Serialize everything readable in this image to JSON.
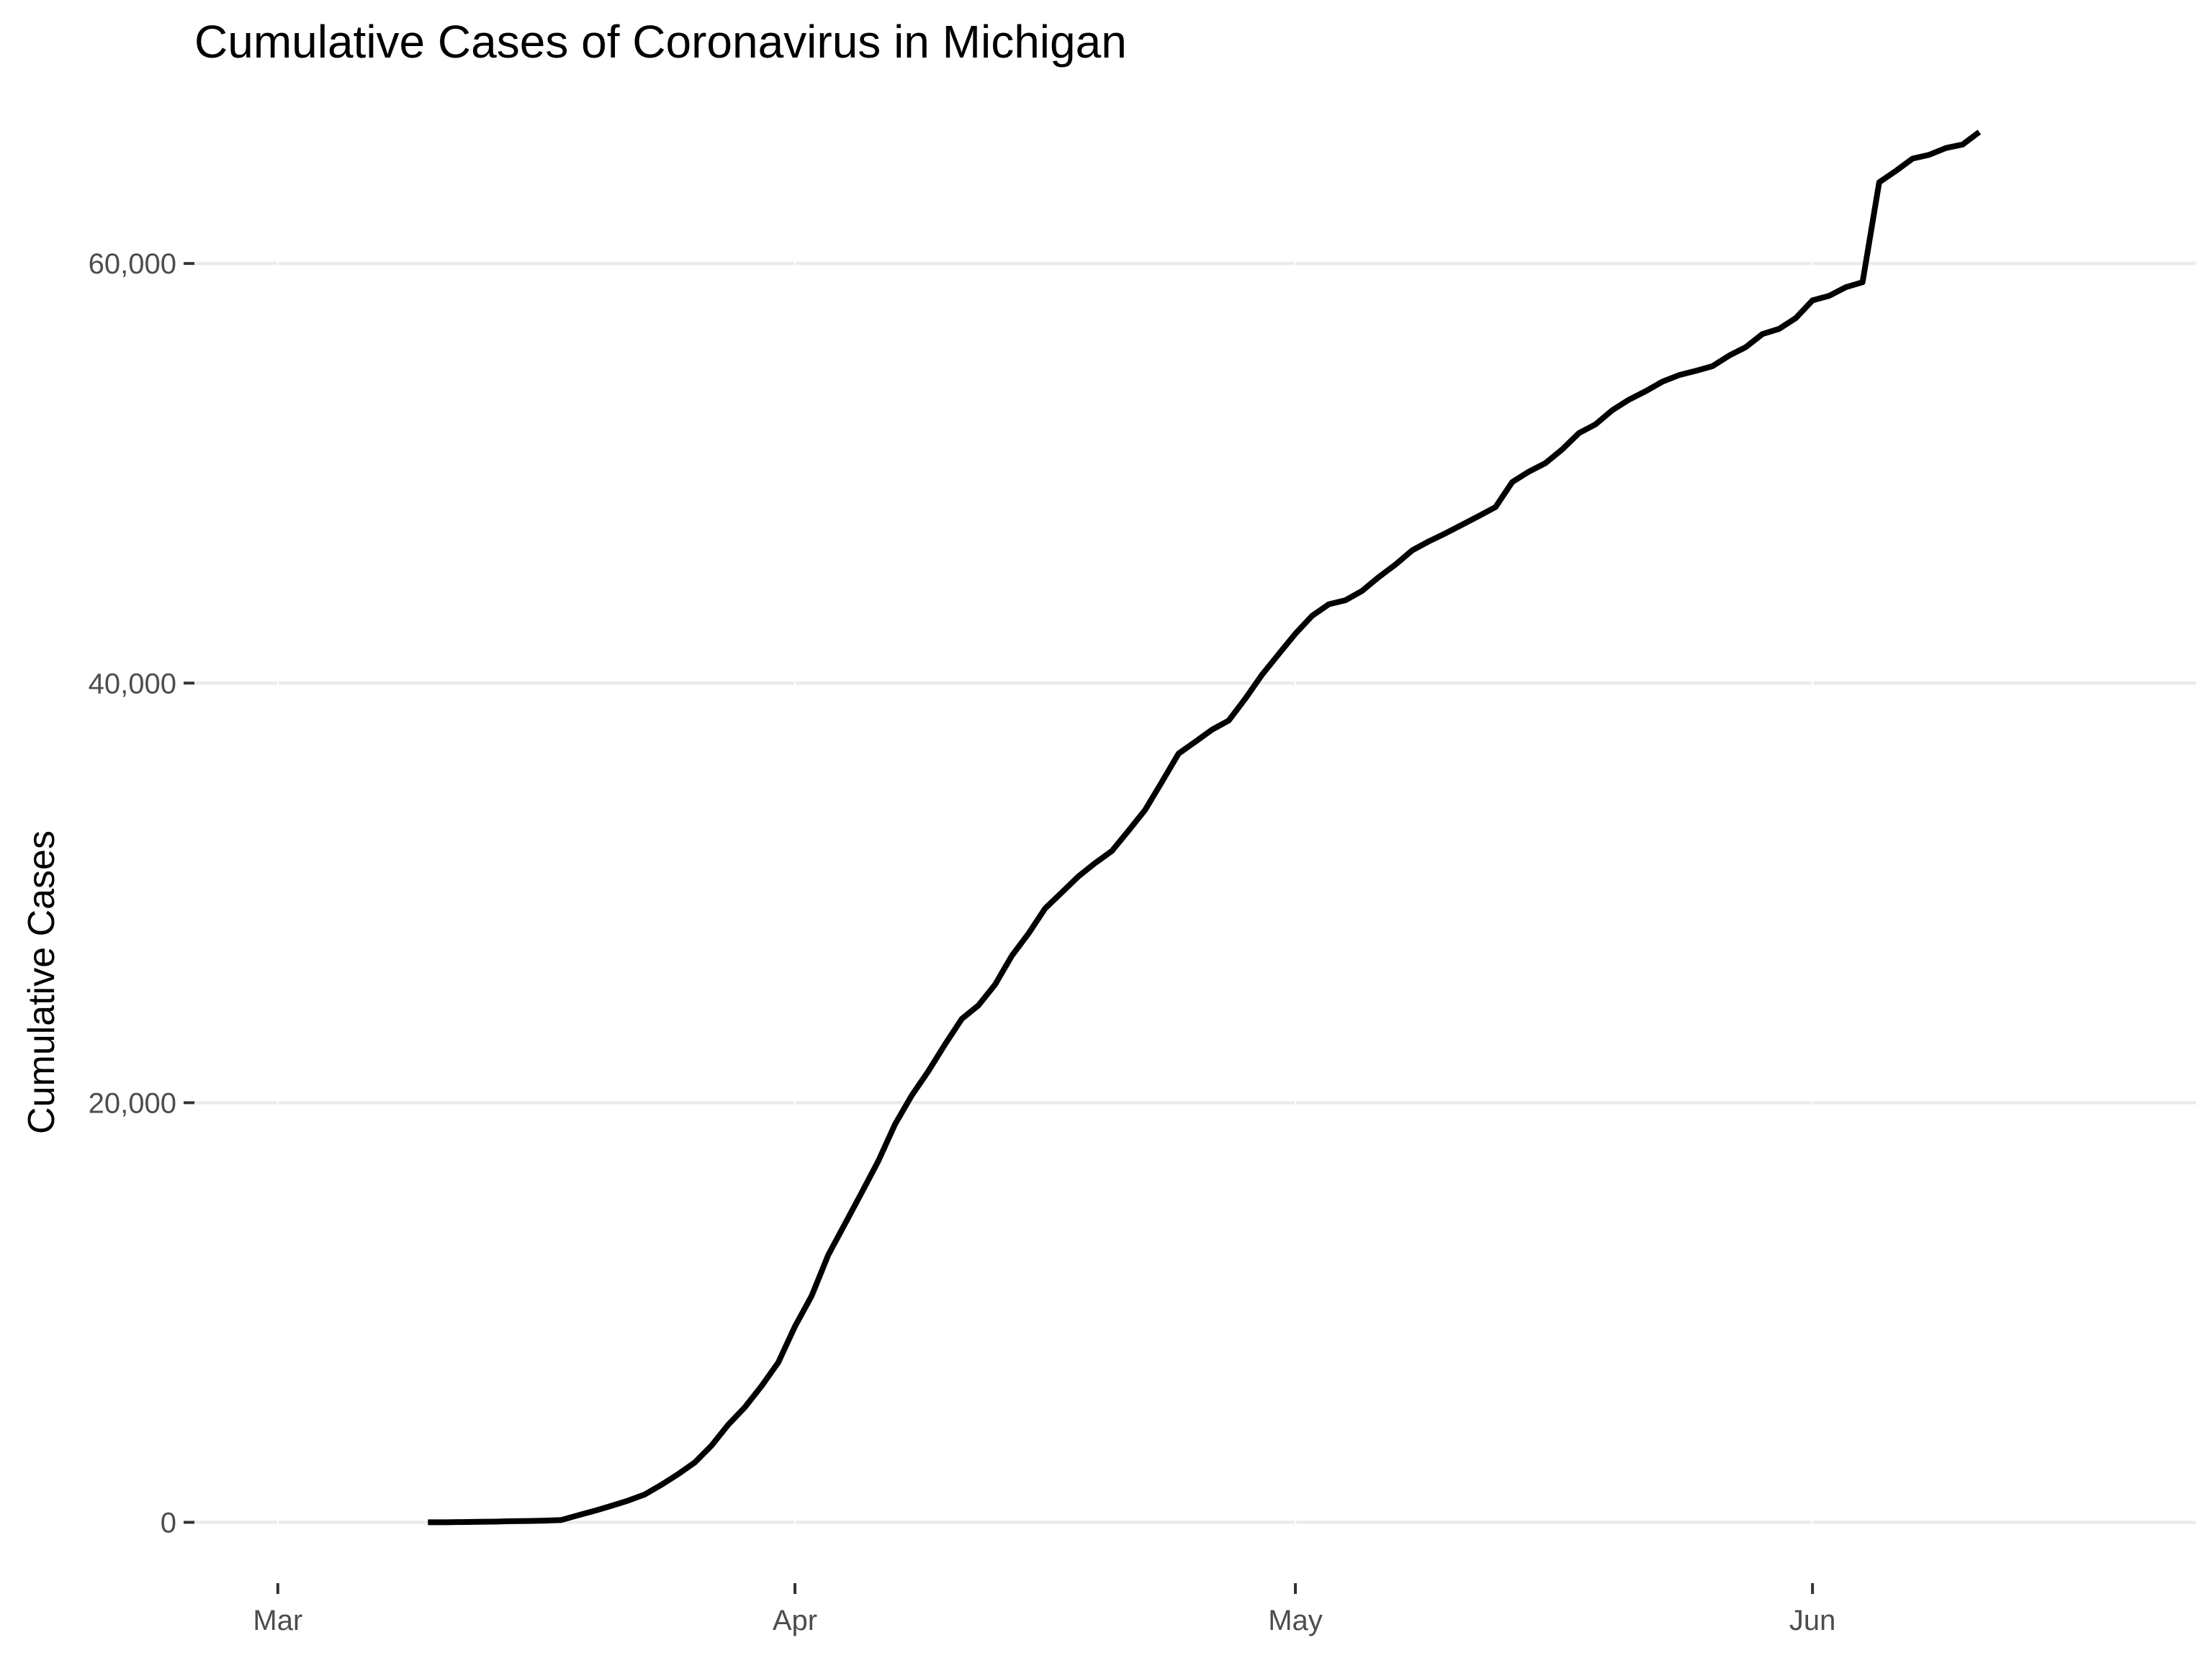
{
  "chart_data": {
    "type": "line",
    "title": "Cumulative Cases of Coronavirus in Michigan",
    "xlabel": "",
    "ylabel": "Cumulative Cases",
    "x_ticks": [
      "Mar",
      "Apr",
      "May",
      "Jun"
    ],
    "x_tick_dates": [
      "2020-03-01",
      "2020-04-01",
      "2020-05-01",
      "2020-06-01"
    ],
    "xlim": [
      "2020-02-25",
      "2020-06-24"
    ],
    "y_ticks": [
      0,
      20000,
      40000,
      60000
    ],
    "y_tick_labels": [
      "0",
      "20,000",
      "40,000",
      "60,000"
    ],
    "ylim": [
      -2900,
      68100
    ],
    "grid": true,
    "line_color": "#000000",
    "series": [
      {
        "x": [
          "2020-03-10",
          "2020-03-11",
          "2020-03-12",
          "2020-03-13",
          "2020-03-14",
          "2020-03-15",
          "2020-03-16",
          "2020-03-17",
          "2020-03-18",
          "2020-03-19",
          "2020-03-20",
          "2020-03-21",
          "2020-03-22",
          "2020-03-23",
          "2020-03-24",
          "2020-03-25",
          "2020-03-26",
          "2020-03-27",
          "2020-03-28",
          "2020-03-29",
          "2020-03-30",
          "2020-03-31",
          "2020-04-01",
          "2020-04-02",
          "2020-04-03",
          "2020-04-04",
          "2020-04-05",
          "2020-04-06",
          "2020-04-07",
          "2020-04-08",
          "2020-04-09",
          "2020-04-10",
          "2020-04-11",
          "2020-04-12",
          "2020-04-13",
          "2020-04-14",
          "2020-04-15",
          "2020-04-16",
          "2020-04-17",
          "2020-04-18",
          "2020-04-19",
          "2020-04-20",
          "2020-04-21",
          "2020-04-22",
          "2020-04-23",
          "2020-04-24",
          "2020-04-25",
          "2020-04-26",
          "2020-04-27",
          "2020-04-28",
          "2020-04-29",
          "2020-04-30",
          "2020-05-01",
          "2020-05-02",
          "2020-05-03",
          "2020-05-04",
          "2020-05-05",
          "2020-05-06",
          "2020-05-07",
          "2020-05-08",
          "2020-05-09",
          "2020-05-10",
          "2020-05-11",
          "2020-05-12",
          "2020-05-13",
          "2020-05-14",
          "2020-05-15",
          "2020-05-16",
          "2020-05-17",
          "2020-05-18",
          "2020-05-19",
          "2020-05-20",
          "2020-05-21",
          "2020-05-22",
          "2020-05-23",
          "2020-05-24",
          "2020-05-25",
          "2020-05-26",
          "2020-05-27",
          "2020-05-28",
          "2020-05-29",
          "2020-05-30",
          "2020-05-31",
          "2020-06-01",
          "2020-06-02",
          "2020-06-03",
          "2020-06-04",
          "2020-06-05",
          "2020-06-06",
          "2020-06-07",
          "2020-06-08",
          "2020-06-09",
          "2020-06-10",
          "2020-06-11"
        ],
        "values": [
          2,
          3,
          12,
          25,
          33,
          53,
          65,
          80,
          110,
          336,
          549,
          787,
          1035,
          1328,
          1791,
          2295,
          2856,
          3657,
          4650,
          5486,
          6498,
          7615,
          9334,
          10791,
          12744,
          14225,
          15718,
          17221,
          18970,
          20346,
          21504,
          22783,
          23993,
          24638,
          25635,
          27001,
          28059,
          29263,
          30023,
          30791,
          31424,
          32000,
          32967,
          33966,
          35291,
          36641,
          37203,
          37778,
          38210,
          39262,
          40399,
          41379,
          42356,
          43207,
          43754,
          43950,
          44397,
          45054,
          45646,
          46326,
          46756,
          47138,
          47552,
          47962,
          48391,
          49582,
          50079,
          50492,
          51142,
          51915,
          52337,
          53009,
          53510,
          53913,
          54365,
          54679,
          54881,
          55104,
          55608,
          56014,
          56638,
          56884,
          57397,
          58241,
          58457,
          58870,
          59107,
          63870,
          64413,
          64998,
          65182,
          65503,
          65672,
          66269
        ]
      }
    ]
  }
}
